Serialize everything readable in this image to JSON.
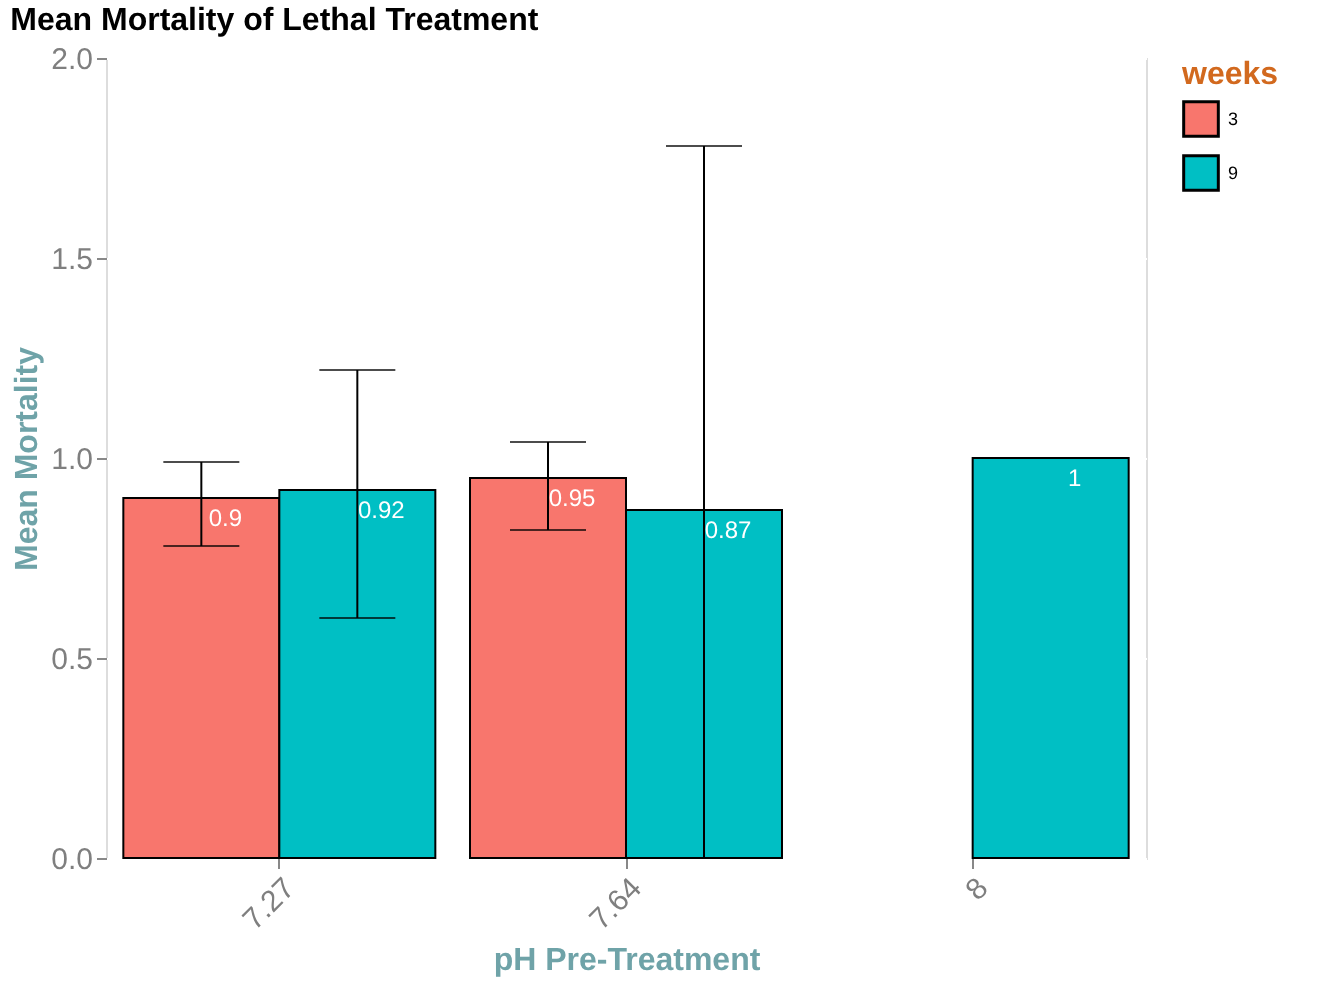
{
  "chart_data": {
    "type": "bar",
    "title": "Mean Mortality of Lethal Treatment",
    "xlabel": "pH Pre-Treatment",
    "ylabel": "Mean Mortality",
    "legend_title": "weeks",
    "categories": [
      "7.27",
      "7.64",
      "8"
    ],
    "series": [
      {
        "name": "3",
        "color": "#f8766d",
        "values": [
          0.9,
          0.95,
          null
        ],
        "errors": [
          [
            0.78,
            0.99
          ],
          [
            0.82,
            1.04
          ],
          null
        ]
      },
      {
        "name": "9",
        "color": "#00bfc4",
        "values": [
          0.92,
          0.87,
          1
        ],
        "errors": [
          [
            0.6,
            1.22
          ],
          [
            0,
            1.78
          ],
          null
        ]
      }
    ],
    "ylim": [
      0,
      2.0
    ],
    "yticks": [
      {
        "value": 0,
        "label": "0.0"
      },
      {
        "value": 0.5,
        "label": "0.5"
      },
      {
        "value": 1,
        "label": "1.0"
      },
      {
        "value": 1.5,
        "label": "1.5"
      },
      {
        "value": 2,
        "label": "2.0"
      }
    ],
    "grid": true,
    "legend": "right",
    "data_labels": true
  }
}
